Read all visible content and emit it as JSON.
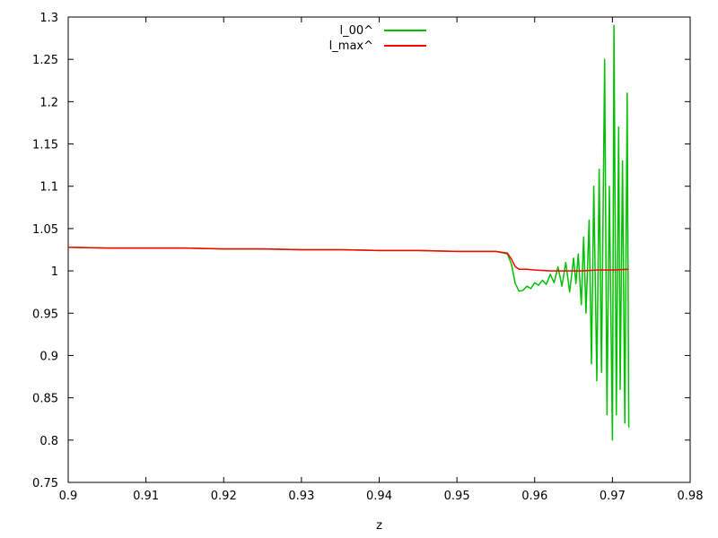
{
  "chart_data": {
    "type": "line",
    "title": "",
    "xlabel": "z",
    "ylabel": "",
    "xlim": [
      0.9,
      0.98
    ],
    "ylim": [
      0.75,
      1.3
    ],
    "grid": false,
    "legend_position": "top-center",
    "x_ticks": [
      "0.9",
      "0.91",
      "0.92",
      "0.93",
      "0.94",
      "0.95",
      "0.96",
      "0.97",
      "0.98"
    ],
    "y_ticks": [
      "0.75",
      "0.8",
      "0.85",
      "0.9",
      "0.95",
      "1",
      "1.05",
      "1.1",
      "1.15",
      "1.2",
      "1.25",
      "1.3"
    ],
    "series": [
      {
        "name": "l_00^",
        "color": "#00c000",
        "points": [
          [
            0.9,
            1.028
          ],
          [
            0.905,
            1.027
          ],
          [
            0.91,
            1.027
          ],
          [
            0.915,
            1.027
          ],
          [
            0.92,
            1.026
          ],
          [
            0.925,
            1.026
          ],
          [
            0.93,
            1.025
          ],
          [
            0.935,
            1.025
          ],
          [
            0.94,
            1.024
          ],
          [
            0.945,
            1.024
          ],
          [
            0.95,
            1.023
          ],
          [
            0.955,
            1.023
          ],
          [
            0.9565,
            1.02
          ],
          [
            0.957,
            1.008
          ],
          [
            0.9575,
            0.985
          ],
          [
            0.958,
            0.976
          ],
          [
            0.9585,
            0.977
          ],
          [
            0.959,
            0.982
          ],
          [
            0.9595,
            0.979
          ],
          [
            0.96,
            0.986
          ],
          [
            0.9605,
            0.983
          ],
          [
            0.961,
            0.989
          ],
          [
            0.9615,
            0.984
          ],
          [
            0.962,
            0.996
          ],
          [
            0.9625,
            0.986
          ],
          [
            0.963,
            1.005
          ],
          [
            0.9635,
            0.982
          ],
          [
            0.964,
            1.01
          ],
          [
            0.9645,
            0.975
          ],
          [
            0.965,
            1.015
          ],
          [
            0.9653,
            0.985
          ],
          [
            0.9656,
            1.02
          ],
          [
            0.966,
            0.96
          ],
          [
            0.9663,
            1.04
          ],
          [
            0.9666,
            0.95
          ],
          [
            0.967,
            1.06
          ],
          [
            0.9673,
            0.89
          ],
          [
            0.9676,
            1.1
          ],
          [
            0.968,
            0.87
          ],
          [
            0.9683,
            1.12
          ],
          [
            0.9686,
            0.88
          ],
          [
            0.969,
            1.25
          ],
          [
            0.9693,
            0.83
          ],
          [
            0.9696,
            1.1
          ],
          [
            0.97,
            0.8
          ],
          [
            0.9702,
            1.29
          ],
          [
            0.9705,
            0.83
          ],
          [
            0.9708,
            1.17
          ],
          [
            0.971,
            0.86
          ],
          [
            0.9713,
            1.13
          ],
          [
            0.9716,
            0.82
          ],
          [
            0.9719,
            1.21
          ],
          [
            0.9721,
            0.815
          ]
        ]
      },
      {
        "name": "l_max^",
        "color": "#ff0000",
        "points": [
          [
            0.9,
            1.028
          ],
          [
            0.905,
            1.027
          ],
          [
            0.91,
            1.027
          ],
          [
            0.915,
            1.027
          ],
          [
            0.92,
            1.026
          ],
          [
            0.925,
            1.026
          ],
          [
            0.93,
            1.025
          ],
          [
            0.935,
            1.025
          ],
          [
            0.94,
            1.024
          ],
          [
            0.945,
            1.024
          ],
          [
            0.95,
            1.023
          ],
          [
            0.955,
            1.023
          ],
          [
            0.9565,
            1.021
          ],
          [
            0.957,
            1.014
          ],
          [
            0.9575,
            1.005
          ],
          [
            0.958,
            1.002
          ],
          [
            0.959,
            1.002
          ],
          [
            0.96,
            1.001
          ],
          [
            0.962,
            1.0
          ],
          [
            0.964,
            1.0
          ],
          [
            0.966,
            1.0
          ],
          [
            0.968,
            1.001
          ],
          [
            0.97,
            1.001
          ],
          [
            0.9721,
            1.002
          ]
        ]
      }
    ]
  }
}
